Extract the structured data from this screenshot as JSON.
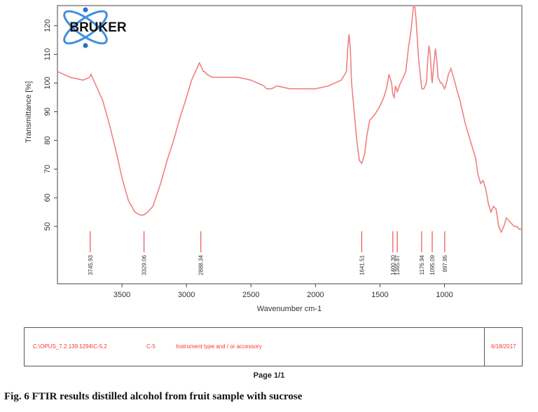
{
  "chart_data": {
    "type": "line",
    "ylabel": "Transmittance [%]",
    "xlabel": "Wavenumber cm-1",
    "xlim": [
      4000,
      400
    ],
    "ylim": [
      30,
      127
    ],
    "x_ticks": [
      3500,
      3000,
      2500,
      2000,
      1500,
      1000
    ],
    "y_ticks": [
      50,
      60,
      70,
      80,
      90,
      100,
      110,
      120
    ],
    "line_color": "#f08080",
    "series": [
      {
        "x": [
          4000,
          3900,
          3800,
          3750,
          3740,
          3720,
          3700,
          3650,
          3600,
          3550,
          3500,
          3450,
          3400,
          3360,
          3330,
          3300,
          3260,
          3200,
          3150,
          3100,
          3050,
          3000,
          2960,
          2920,
          2900,
          2888,
          2870,
          2860,
          2840,
          2800,
          2700,
          2600,
          2500,
          2400,
          2380,
          2360,
          2340,
          2300,
          2200,
          2100,
          2000,
          1900,
          1850,
          1800,
          1760,
          1750,
          1740,
          1730,
          1720,
          1700,
          1680,
          1660,
          1641,
          1620,
          1600,
          1580,
          1560,
          1540,
          1500,
          1470,
          1450,
          1430,
          1410,
          1400,
          1390,
          1380,
          1366,
          1350,
          1330,
          1300,
          1280,
          1260,
          1240,
          1230,
          1220,
          1200,
          1176,
          1160,
          1140,
          1130,
          1120,
          1110,
          1100,
          1095,
          1085,
          1070,
          1060,
          1050,
          1040,
          1030,
          1020,
          1000,
          990,
          980,
          970,
          950,
          930,
          900,
          880,
          860,
          840,
          800,
          760,
          740,
          720,
          700,
          680,
          660,
          640,
          620,
          600,
          580,
          560,
          540,
          520,
          500,
          480,
          460,
          440,
          420,
          400
        ],
        "y": [
          104,
          102,
          101,
          102,
          103,
          101,
          99,
          94,
          86,
          77,
          67,
          59,
          55,
          54,
          54,
          55,
          57,
          65,
          73,
          80,
          88,
          95,
          101,
          105,
          107,
          106,
          104,
          104,
          103,
          102,
          102,
          102,
          101,
          99,
          98,
          98,
          98,
          99,
          98,
          98,
          98,
          99,
          100,
          101,
          104,
          112,
          117,
          112,
          100,
          90,
          80,
          73,
          72,
          75,
          82,
          87,
          88,
          89,
          92,
          95,
          98,
          103,
          100,
          96,
          95,
          99,
          97,
          99,
          101,
          104,
          112,
          118,
          127,
          127,
          122,
          108,
          98,
          98,
          100,
          108,
          113,
          110,
          102,
          100,
          105,
          112,
          108,
          102,
          101,
          100,
          100,
          98,
          99,
          101,
          103,
          105,
          102,
          97,
          94,
          90,
          86,
          80,
          74,
          68,
          65,
          66,
          63,
          58,
          55,
          57,
          56,
          50,
          48,
          50,
          53,
          52,
          51,
          50,
          50,
          49,
          49
        ]
      }
    ],
    "peak_labels": [
      "3745.93",
      "3329.06",
      "2888.34",
      "1641.51",
      "1400.30",
      "1365.87",
      "1176.94",
      "1095.09",
      "997.95"
    ],
    "peak_positions": [
      3745.93,
      3329.06,
      2888.34,
      1641.51,
      1400.3,
      1365.87,
      1176.94,
      1095.09,
      997.95
    ]
  },
  "logo": {
    "text": "BRUKER"
  },
  "footer": {
    "path": "C:\\OPUS_7.2.139.1294\\C-5.2",
    "sample": "C-5",
    "instrument": "Instrument type and / or accessory",
    "date": "6/18/2017",
    "text_color": "#ff3333"
  },
  "page_label": "Page 1/1",
  "caption": "Fig. 6 FTIR results distilled alcohol from fruit sample with sucrose"
}
